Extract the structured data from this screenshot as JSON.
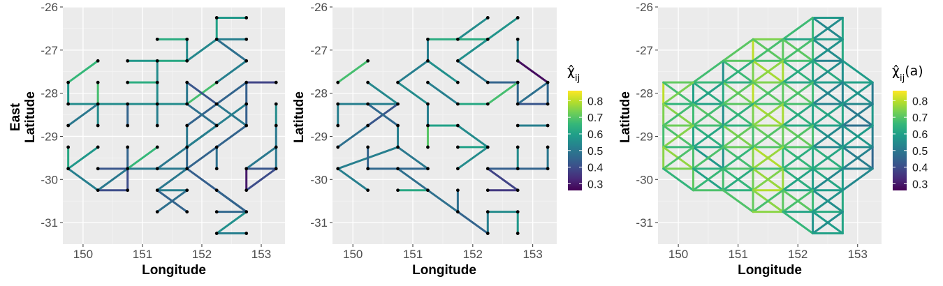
{
  "chart_data": [
    {
      "type": "network",
      "title": "",
      "xlabel": "Longitude",
      "ylabel": [
        "East",
        "Latitude"
      ],
      "xlim": [
        149.66,
        153.4
      ],
      "ylim": [
        -31.5,
        -26.0
      ],
      "xticks": [
        150,
        151,
        152,
        153
      ],
      "yticks": [
        -26,
        -27,
        -28,
        -29,
        -30,
        -31
      ],
      "grid": true,
      "legend": null,
      "edges": [
        [
          152.25,
          -26.25,
          152.75,
          -26.25,
          0.58
        ],
        [
          152.25,
          -26.25,
          152.25,
          -26.75,
          0.6
        ],
        [
          152.25,
          -26.75,
          152.75,
          -26.75,
          0.52
        ],
        [
          152.25,
          -26.75,
          151.75,
          -27.25,
          0.54
        ],
        [
          151.75,
          -27.25,
          151.25,
          -27.25,
          0.62
        ],
        [
          151.25,
          -26.75,
          151.75,
          -26.75,
          0.63
        ],
        [
          151.75,
          -26.75,
          151.75,
          -27.25,
          0.55
        ],
        [
          152.25,
          -26.75,
          152.75,
          -27.25,
          0.48
        ],
        [
          152.75,
          -27.25,
          152.25,
          -27.75,
          0.52
        ],
        [
          152.25,
          -27.75,
          151.75,
          -28.25,
          0.68
        ],
        [
          151.75,
          -27.75,
          152.25,
          -28.25,
          0.42
        ],
        [
          151.75,
          -27.75,
          151.75,
          -28.25,
          0.5
        ],
        [
          152.75,
          -27.75,
          153.25,
          -27.75,
          0.38
        ],
        [
          152.75,
          -27.75,
          151.75,
          -28.75,
          0.45
        ],
        [
          152.75,
          -27.75,
          152.75,
          -28.75,
          0.44
        ],
        [
          150.75,
          -27.25,
          151.25,
          -27.25,
          0.58
        ],
        [
          151.25,
          -27.25,
          151.25,
          -28.25,
          0.55
        ],
        [
          150.25,
          -27.25,
          149.75,
          -27.75,
          0.66
        ],
        [
          149.75,
          -27.75,
          149.75,
          -28.25,
          0.58
        ],
        [
          149.75,
          -28.25,
          151.75,
          -28.25,
          0.55
        ],
        [
          150.25,
          -27.75,
          150.25,
          -28.25,
          0.68
        ],
        [
          150.25,
          -28.25,
          149.75,
          -28.75,
          0.5
        ],
        [
          150.25,
          -28.25,
          150.25,
          -28.75,
          0.55
        ],
        [
          150.75,
          -28.25,
          150.75,
          -28.75,
          0.45
        ],
        [
          150.75,
          -27.75,
          151.25,
          -27.75,
          0.63
        ],
        [
          151.25,
          -28.25,
          151.25,
          -28.75,
          0.52
        ],
        [
          151.75,
          -28.25,
          152.25,
          -28.75,
          0.48
        ],
        [
          152.25,
          -28.75,
          151.25,
          -29.75,
          0.5
        ],
        [
          152.25,
          -28.25,
          152.75,
          -28.75,
          0.5
        ],
        [
          152.75,
          -28.25,
          151.75,
          -29.25,
          0.52
        ],
        [
          151.75,
          -29.25,
          151.75,
          -29.75,
          0.46
        ],
        [
          151.75,
          -28.75,
          151.75,
          -29.25,
          0.5
        ],
        [
          152.25,
          -29.25,
          152.25,
          -29.75,
          0.48
        ],
        [
          152.75,
          -28.75,
          151.75,
          -29.75,
          0.45
        ],
        [
          153.25,
          -28.25,
          153.25,
          -28.75,
          0.55
        ],
        [
          153.25,
          -28.75,
          153.25,
          -29.75,
          0.5
        ],
        [
          153.25,
          -29.25,
          152.75,
          -29.75,
          0.5
        ],
        [
          152.75,
          -29.75,
          153.25,
          -29.75,
          0.42
        ],
        [
          152.75,
          -29.75,
          152.75,
          -30.25,
          0.3
        ],
        [
          152.75,
          -30.25,
          153.25,
          -29.75,
          0.4
        ],
        [
          151.75,
          -29.75,
          150.75,
          -29.75,
          0.5
        ],
        [
          151.75,
          -29.75,
          151.25,
          -30.25,
          0.5
        ],
        [
          151.25,
          -30.25,
          151.75,
          -30.25,
          0.52
        ],
        [
          151.75,
          -30.25,
          151.25,
          -30.75,
          0.48
        ],
        [
          151.25,
          -30.25,
          151.75,
          -30.75,
          0.45
        ],
        [
          151.75,
          -29.75,
          152.75,
          -30.75,
          0.44
        ],
        [
          152.25,
          -30.75,
          152.75,
          -30.75,
          0.46
        ],
        [
          152.75,
          -30.75,
          152.25,
          -31.25,
          0.56
        ],
        [
          152.25,
          -31.25,
          152.75,
          -31.25,
          0.52
        ],
        [
          152.25,
          -30.25,
          152.75,
          -30.75,
          0.45
        ],
        [
          149.75,
          -29.25,
          149.75,
          -29.75,
          0.62
        ],
        [
          149.75,
          -29.75,
          150.25,
          -29.25,
          0.58
        ],
        [
          149.75,
          -29.75,
          150.25,
          -30.25,
          0.52
        ],
        [
          150.25,
          -30.25,
          150.75,
          -30.25,
          0.4
        ],
        [
          150.25,
          -29.75,
          150.75,
          -29.75,
          0.42
        ],
        [
          150.75,
          -29.75,
          150.75,
          -30.25,
          0.4
        ],
        [
          150.75,
          -29.75,
          151.25,
          -29.25,
          0.66
        ],
        [
          150.75,
          -29.75,
          150.25,
          -30.25,
          0.5
        ],
        [
          150.75,
          -29.25,
          150.75,
          -29.75,
          0.45
        ]
      ]
    },
    {
      "type": "network",
      "title": "",
      "xlabel": "Longitude",
      "ylabel": "Latitude",
      "xlim": [
        149.66,
        153.4
      ],
      "ylim": [
        -31.5,
        -26.0
      ],
      "xticks": [
        150,
        151,
        152,
        153
      ],
      "yticks": [
        -26,
        -27,
        -28,
        -29,
        -30,
        -31
      ],
      "grid": true,
      "legend": {
        "title": "χ̂",
        "subscript": "ij",
        "ticks": [
          "0.8",
          "0.7",
          "0.6",
          "0.5",
          "0.4",
          "0.3"
        ]
      },
      "edges": [
        [
          152.25,
          -26.25,
          151.75,
          -26.75,
          0.55
        ],
        [
          151.25,
          -26.75,
          152.25,
          -26.75,
          0.63
        ],
        [
          152.75,
          -26.25,
          152.25,
          -26.75,
          0.57
        ],
        [
          152.25,
          -26.75,
          151.75,
          -27.25,
          0.56
        ],
        [
          152.75,
          -26.75,
          152.75,
          -27.25,
          0.52
        ],
        [
          151.25,
          -26.75,
          151.25,
          -27.25,
          0.52
        ],
        [
          152.75,
          -27.25,
          153.25,
          -27.75,
          0.28
        ],
        [
          153.25,
          -27.75,
          152.75,
          -28.25,
          0.48
        ],
        [
          152.75,
          -28.25,
          153.25,
          -28.25,
          0.42
        ],
        [
          153.25,
          -27.75,
          153.25,
          -28.25,
          0.46
        ],
        [
          151.75,
          -27.25,
          152.25,
          -27.75,
          0.5
        ],
        [
          152.25,
          -27.75,
          152.75,
          -27.75,
          0.45
        ],
        [
          152.75,
          -27.75,
          152.75,
          -28.25,
          0.46
        ],
        [
          151.25,
          -27.25,
          151.75,
          -27.75,
          0.56
        ],
        [
          151.25,
          -27.25,
          150.75,
          -27.75,
          0.52
        ],
        [
          150.75,
          -27.75,
          151.25,
          -28.25,
          0.55
        ],
        [
          151.25,
          -27.75,
          151.75,
          -28.25,
          0.52
        ],
        [
          151.25,
          -28.25,
          151.25,
          -28.75,
          0.52
        ],
        [
          151.75,
          -28.25,
          152.25,
          -28.25,
          0.62
        ],
        [
          152.25,
          -28.25,
          152.75,
          -27.75,
          0.68
        ],
        [
          150.25,
          -27.25,
          149.75,
          -27.75,
          0.68
        ],
        [
          150.25,
          -27.75,
          150.75,
          -28.25,
          0.54
        ],
        [
          149.75,
          -28.25,
          150.75,
          -28.25,
          0.52
        ],
        [
          150.75,
          -28.25,
          150.25,
          -28.75,
          0.42
        ],
        [
          149.75,
          -28.25,
          149.75,
          -28.75,
          0.52
        ],
        [
          150.25,
          -28.25,
          150.75,
          -28.75,
          0.46
        ],
        [
          150.25,
          -28.75,
          149.75,
          -29.25,
          0.48
        ],
        [
          150.75,
          -28.75,
          150.75,
          -29.25,
          0.52
        ],
        [
          150.75,
          -29.25,
          149.75,
          -29.75,
          0.52
        ],
        [
          149.75,
          -29.75,
          150.25,
          -30.25,
          0.52
        ],
        [
          150.25,
          -29.75,
          151.25,
          -29.75,
          0.46
        ],
        [
          150.25,
          -29.25,
          150.25,
          -29.75,
          0.45
        ],
        [
          150.75,
          -29.25,
          151.25,
          -29.75,
          0.5
        ],
        [
          151.25,
          -28.75,
          151.75,
          -28.75,
          0.6
        ],
        [
          151.25,
          -28.75,
          151.25,
          -29.25,
          0.7
        ],
        [
          151.75,
          -29.25,
          152.25,
          -29.25,
          0.6
        ],
        [
          152.25,
          -29.25,
          151.75,
          -29.75,
          0.55
        ],
        [
          151.75,
          -28.75,
          152.25,
          -29.25,
          0.55
        ],
        [
          152.75,
          -28.75,
          153.25,
          -28.75,
          0.52
        ],
        [
          152.75,
          -29.25,
          152.75,
          -29.75,
          0.55
        ],
        [
          152.25,
          -29.75,
          152.75,
          -29.75,
          0.44
        ],
        [
          152.75,
          -29.75,
          153.25,
          -29.75,
          0.45
        ],
        [
          152.25,
          -29.75,
          152.75,
          -30.25,
          0.38
        ],
        [
          152.25,
          -30.25,
          152.75,
          -30.25,
          0.36
        ],
        [
          153.25,
          -29.25,
          153.25,
          -29.75,
          0.5
        ],
        [
          150.75,
          -30.25,
          151.25,
          -30.25,
          0.62
        ],
        [
          150.75,
          -29.75,
          151.75,
          -30.75,
          0.48
        ],
        [
          151.75,
          -30.75,
          152.25,
          -31.25,
          0.45
        ],
        [
          151.75,
          -30.25,
          151.75,
          -30.75,
          0.48
        ],
        [
          152.25,
          -30.75,
          152.25,
          -31.25,
          0.52
        ],
        [
          152.25,
          -30.75,
          152.75,
          -30.75,
          0.55
        ],
        [
          152.75,
          -30.75,
          152.75,
          -31.25,
          0.58
        ]
      ]
    },
    {
      "type": "network",
      "title": "",
      "xlabel": "Longitude",
      "ylabel": "Latitude",
      "xlim": [
        149.66,
        153.4
      ],
      "ylim": [
        -31.5,
        -26.0
      ],
      "xticks": [
        150,
        151,
        152,
        153
      ],
      "yticks": [
        -26,
        -27,
        -28,
        -29,
        -30,
        -31
      ],
      "grid": true,
      "legend": {
        "title": "χ̂",
        "subscript": "ij",
        "suffix": "(a)",
        "ticks": [
          "0.8",
          "0.7",
          "0.6",
          "0.5",
          "0.4",
          "0.3"
        ]
      },
      "grid_network": {
        "rows": [
          {
            "lat": -26.25,
            "lons": [
              152.25,
              152.75
            ]
          },
          {
            "lat": -26.75,
            "lons": [
              151.25,
              151.75,
              152.25,
              152.75
            ]
          },
          {
            "lat": -27.25,
            "lons": [
              150.75,
              151.25,
              151.75,
              152.25,
              152.75
            ]
          },
          {
            "lat": -27.75,
            "lons": [
              149.75,
              150.25,
              150.75,
              151.25,
              151.75,
              152.25,
              152.75,
              153.25
            ]
          },
          {
            "lat": -28.25,
            "lons": [
              149.75,
              150.25,
              150.75,
              151.25,
              151.75,
              152.25,
              152.75,
              153.25
            ]
          },
          {
            "lat": -28.75,
            "lons": [
              149.75,
              150.25,
              150.75,
              151.25,
              151.75,
              152.25,
              152.75,
              153.25
            ]
          },
          {
            "lat": -29.25,
            "lons": [
              149.75,
              150.25,
              150.75,
              151.25,
              151.75,
              152.25,
              152.75,
              153.25
            ]
          },
          {
            "lat": -29.75,
            "lons": [
              149.75,
              150.25,
              150.75,
              151.25,
              151.75,
              152.25,
              152.75,
              153.25
            ]
          },
          {
            "lat": -30.25,
            "lons": [
              150.25,
              150.75,
              151.25,
              151.75,
              152.25,
              152.75
            ]
          },
          {
            "lat": -30.75,
            "lons": [
              151.25,
              151.75,
              152.25,
              152.75
            ]
          },
          {
            "lat": -31.25,
            "lons": [
              152.25,
              152.75
            ]
          }
        ],
        "value_by_longitude": [
          [
            149.75,
            0.74
          ],
          [
            150.25,
            0.66
          ],
          [
            150.75,
            0.62
          ],
          [
            151.25,
            0.74
          ],
          [
            151.75,
            0.72
          ],
          [
            152.25,
            0.62
          ],
          [
            152.75,
            0.56
          ],
          [
            153.25,
            0.52
          ]
        ]
      }
    }
  ],
  "colorscale": {
    "name": "viridis",
    "range": [
      0.26,
      0.86
    ],
    "stops": [
      "#440154",
      "#482878",
      "#3e4a89",
      "#31688e",
      "#26828e",
      "#1f9e89",
      "#35b779",
      "#6ece58",
      "#b5de2b",
      "#fde725"
    ]
  }
}
